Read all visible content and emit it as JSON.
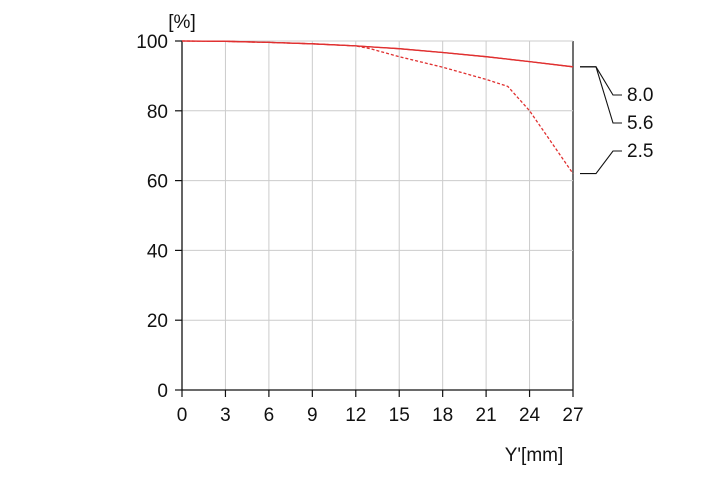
{
  "chart_data": {
    "type": "line",
    "title": "",
    "xlabel": "Y'[mm]",
    "ylabel": "[%]",
    "xlim": [
      0,
      27
    ],
    "ylim": [
      0,
      100
    ],
    "x_ticks": [
      0,
      3,
      6,
      9,
      12,
      15,
      18,
      21,
      24,
      27
    ],
    "y_ticks": [
      0,
      20,
      40,
      60,
      80,
      100
    ],
    "grid": true,
    "legend": "right",
    "series": [
      {
        "name": "8.0",
        "style": "solid",
        "color": "#e03030",
        "x": [
          0,
          3,
          6,
          9,
          12,
          15,
          18,
          21,
          24,
          27
        ],
        "y": [
          100,
          99.9,
          99.6,
          99.2,
          98.6,
          97.8,
          96.7,
          95.5,
          94.1,
          92.6
        ]
      },
      {
        "name": "5.6",
        "style": "solid",
        "color": "#e03030",
        "x": [
          0,
          3,
          6,
          9,
          12,
          15,
          18,
          21,
          24,
          27
        ],
        "y": [
          100,
          99.9,
          99.6,
          99.2,
          98.6,
          97.8,
          96.7,
          95.5,
          94.1,
          92.6
        ]
      },
      {
        "name": "2.5",
        "style": "dashed",
        "color": "#e03030",
        "x": [
          0,
          3,
          6,
          9,
          12,
          13,
          15,
          18,
          21,
          22.5,
          24,
          25.5,
          27
        ],
        "y": [
          100,
          99.9,
          99.6,
          99.2,
          98.6,
          97.8,
          95.5,
          92.5,
          89.0,
          87.0,
          80.0,
          71.0,
          62.0
        ]
      }
    ],
    "colors": {
      "series": "#e03030",
      "axis": "#111111",
      "grid": "#cccccc"
    }
  }
}
